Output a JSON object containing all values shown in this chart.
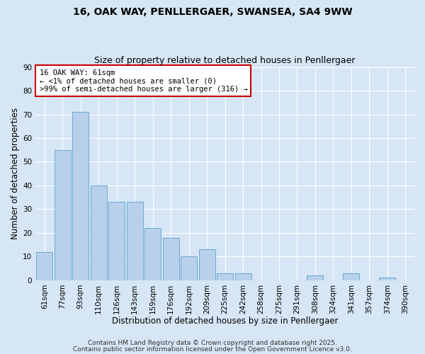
{
  "title_line1": "16, OAK WAY, PENLLERGAER, SWANSEA, SA4 9WW",
  "title_line2": "Size of property relative to detached houses in Penllergaer",
  "xlabel": "Distribution of detached houses by size in Penllergaer",
  "ylabel": "Number of detached properties",
  "categories": [
    "61sqm",
    "77sqm",
    "93sqm",
    "110sqm",
    "126sqm",
    "143sqm",
    "159sqm",
    "176sqm",
    "192sqm",
    "209sqm",
    "225sqm",
    "242sqm",
    "258sqm",
    "275sqm",
    "291sqm",
    "308sqm",
    "324sqm",
    "341sqm",
    "357sqm",
    "374sqm",
    "390sqm"
  ],
  "values": [
    12,
    55,
    71,
    40,
    33,
    33,
    22,
    18,
    10,
    13,
    3,
    3,
    0,
    0,
    0,
    2,
    0,
    3,
    0,
    1,
    0
  ],
  "bar_color": "#b8d0ea",
  "bar_edge_color": "#6aaad4",
  "ylim": [
    0,
    90
  ],
  "yticks": [
    0,
    10,
    20,
    30,
    40,
    50,
    60,
    70,
    80,
    90
  ],
  "bg_color": "#d6e6f5",
  "plot_bg_color": "#d6e6f5",
  "grid_color": "#ffffff",
  "annotation_box_text_line1": "16 OAK WAY: 61sqm",
  "annotation_box_text_line2": "← <1% of detached houses are smaller (0)",
  "annotation_box_text_line3": ">99% of semi-detached houses are larger (316) →",
  "annotation_box_edge_color": "#cc0000",
  "footer_line1": "Contains HM Land Registry data © Crown copyright and database right 2025.",
  "footer_line2": "Contains public sector information licensed under the Open Government Licence v3.0.",
  "title_fontsize": 10,
  "subtitle_fontsize": 9,
  "axis_label_fontsize": 8.5,
  "tick_fontsize": 7.5,
  "annotation_fontsize": 7.5,
  "footer_fontsize": 6.5
}
